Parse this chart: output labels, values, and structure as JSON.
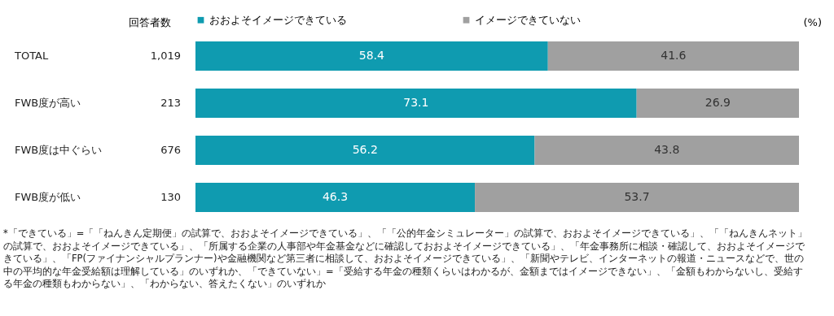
{
  "chart_data": {
    "type": "bar",
    "orientation": "horizontal",
    "stacked": true,
    "data_labels": true,
    "legend": "top",
    "tick_labels": false,
    "xlim": [
      0,
      100
    ],
    "categories": [
      "TOTAL",
      "FWB度が高い",
      "FWB度は中ぐらい",
      "FWB度が低い"
    ],
    "series": [
      {
        "name": "おおよそイメージできている",
        "color": "#0f9bb0",
        "values": [
          58.4,
          73.1,
          56.2,
          46.3
        ]
      },
      {
        "name": "イメージできていない",
        "color": "#a0a0a0",
        "values": [
          41.6,
          26.9,
          43.8,
          53.7
        ]
      }
    ],
    "annotations": [
      "回答者数",
      "1,019",
      "213",
      "676",
      "130",
      "(%)",
      "*「できている」=「「ねんきん定期便」の試算で、おおよそイメージできている」、「「公的年金シミュレーター」の試算で、おおよそイメージできている」、「「ねんきんネット」の試算で、おおよそイメージできている」、「所属する企業の人事部や年金基金などに確認しておおよそイメージできている」、「年金事務所に相談・確認して、おおよそイメージできている」、「FP(ファイナンシャルプランナー)や金融機関など第三者に相談して、おおよそイメージできている」、「新聞やテレビ、インターネットの報道・ニュースなどで、世の中の平均的な年金受給額は理解している」のいずれか、「できていない」=「受給する年金の種類くらいはわかるが、金額まではイメージできない」、「金額もわからないし、受給する年金の種類もわからない」、「わからない、答えたくない」のいずれか"
    ]
  }
}
